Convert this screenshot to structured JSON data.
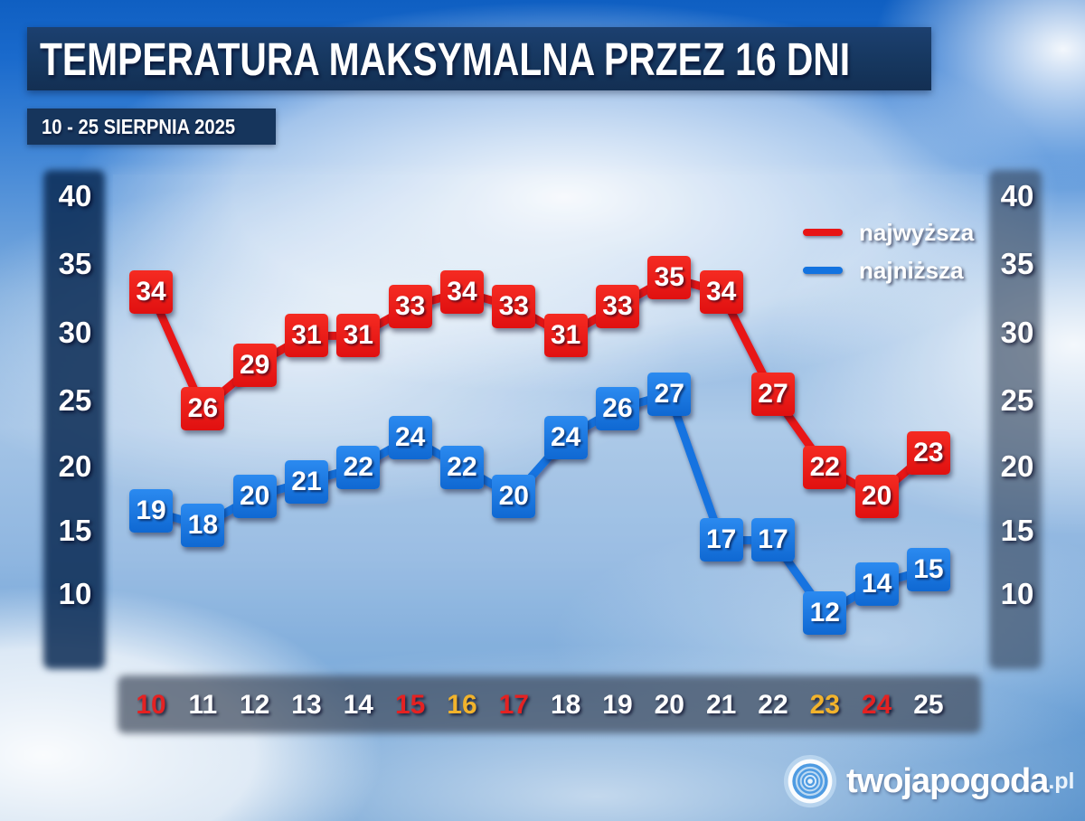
{
  "header": {
    "title": "TEMPERATURA MAKSYMALNA PRZEZ 16 DNI",
    "subtitle": "10 - 25 SIERPNIA 2025"
  },
  "legend": {
    "high_label": "najwyższa",
    "low_label": "najniższa"
  },
  "colors": {
    "high_series": "#e81414",
    "low_series": "#1373e0",
    "day_red": "#e42222",
    "day_gold": "#f2b32c",
    "day_white": "#ffffff"
  },
  "y_axis": {
    "ticks": [
      "40",
      "35",
      "30",
      "25",
      "20",
      "15",
      "10"
    ]
  },
  "x_axis": {
    "days": [
      {
        "label": "10",
        "color": "red"
      },
      {
        "label": "11",
        "color": "white"
      },
      {
        "label": "12",
        "color": "white"
      },
      {
        "label": "13",
        "color": "white"
      },
      {
        "label": "14",
        "color": "white"
      },
      {
        "label": "15",
        "color": "red"
      },
      {
        "label": "16",
        "color": "gold"
      },
      {
        "label": "17",
        "color": "red"
      },
      {
        "label": "18",
        "color": "white"
      },
      {
        "label": "19",
        "color": "white"
      },
      {
        "label": "20",
        "color": "white"
      },
      {
        "label": "21",
        "color": "white"
      },
      {
        "label": "22",
        "color": "white"
      },
      {
        "label": "23",
        "color": "gold"
      },
      {
        "label": "24",
        "color": "red"
      },
      {
        "label": "25",
        "color": "white"
      }
    ]
  },
  "chart_data": {
    "type": "line",
    "title": "TEMPERATURA MAKSYMALNA PRZEZ 16 DNI",
    "subtitle": "10 - 25 SIERPNIA 2025",
    "categories": [
      "10",
      "11",
      "12",
      "13",
      "14",
      "15",
      "16",
      "17",
      "18",
      "19",
      "20",
      "21",
      "22",
      "23",
      "24",
      "25"
    ],
    "series": [
      {
        "name": "najwyższa",
        "color": "#e81414",
        "values": [
          34,
          26,
          29,
          31,
          31,
          33,
          34,
          33,
          31,
          33,
          35,
          34,
          27,
          22,
          20,
          23
        ]
      },
      {
        "name": "najniższa",
        "color": "#1373e0",
        "values": [
          19,
          18,
          20,
          21,
          22,
          24,
          22,
          20,
          24,
          26,
          27,
          17,
          17,
          12,
          14,
          15
        ]
      }
    ],
    "xlabel": "",
    "ylabel": "",
    "ylim": [
      10,
      40
    ],
    "y_ticks": [
      40,
      35,
      30,
      25,
      20,
      15,
      10
    ],
    "grid": false,
    "legend_position": "top-right"
  },
  "logo": {
    "name": "twojapogoda",
    "tld": ".pl"
  }
}
